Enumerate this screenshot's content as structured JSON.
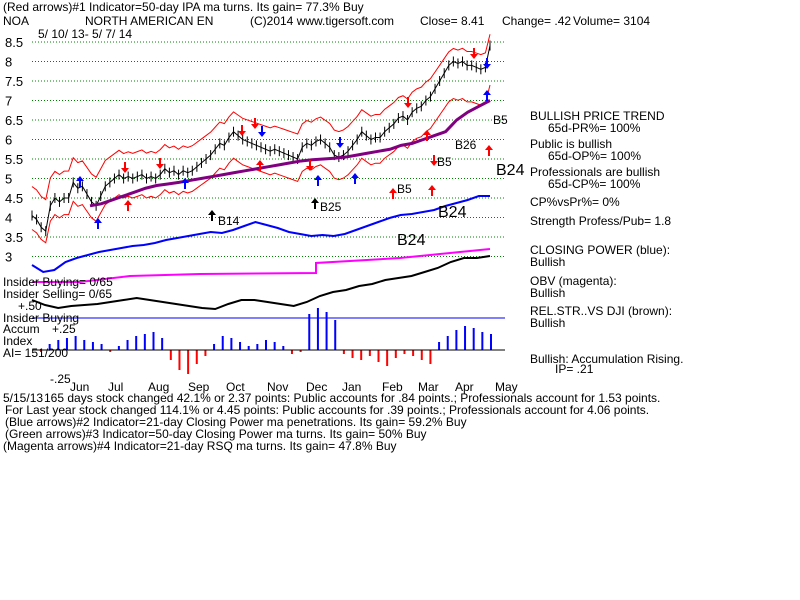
{
  "header": {
    "line1": "(Red arrows)#1 Indicator=50-day IPA ma turns. Its gain= 77.3% Buy",
    "ticker": "NOA",
    "company": "NORTH AMERICAN EN",
    "copyright": "(C)2014 www.tigersoft.com",
    "close": "Close=  8.41",
    "change": "Change= .42",
    "volume": "Volume= 3104",
    "date_range": "5/ 10/ 13- 5/ 7/ 14"
  },
  "signals": [
    "B14",
    "B25",
    "B5",
    "B5",
    "B5",
    "B26",
    "B24",
    "B24",
    "B24"
  ],
  "side_panel": {
    "trend_title": "BULLISH PRICE TREND",
    "pr": "65d-PR%= 100%",
    "public": "Public is bullish",
    "op": "65d-OP%= 100%",
    "pros": "Professionals are bullish",
    "cp": "65d-CP%= 100%",
    "cpvspr": "CP%vsPr%=  0%",
    "strength": "Strength Profess/Pub= 1.8",
    "closing_power": "CLOSING POWER (blue):",
    "closing_power_val": "Bullish",
    "obv": "OBV (magenta):",
    "obv_val": "Bullish",
    "relstr": "REL.STR..VS DJI (brown):",
    "relstr_val": "Bullish",
    "accum": "Bullish: Accumulation Rising.",
    "ip": "IP=  .21"
  },
  "lower_panel": {
    "insider_buying": "Insider Buying= 0/65",
    "insider_selling": "Insider Selling= 0/65",
    "plus50": "+.50",
    "insider_buying2": "Insider Buying",
    "accum_label": "Accum",
    "plus25": "+.25",
    "index_label": "Index",
    "ai": "AI= 151/200",
    "minus25": "-.25"
  },
  "footer": {
    "l1": "165 days stock changed  42.1% or  2.37 points:  Public accounts for  .84 points.;  Professionals account for  1.53 points.",
    "l1_prefix": "5/15/13",
    "l2": "For Last year stock changed  114.1% or  4.45 points:  Public accounts for  .39 points.;  Professionals account for  4.06 points.",
    "l3": "(Blue arrows)#2 Indicator=21-day Closing Power ma penetrations. Its gain= 59.2% Buy",
    "l4": "(Green arrows)#3 Indicator=50-day Closing Power ma turns. Its gain= 50% Buy",
    "l5": "(Magenta arrows)#4 Indicator=21-day RSQ ma turns. Its gain= 47.8% Buy"
  },
  "colors": {
    "price": "#000000",
    "bands": "#ff0000",
    "ma": "#800080",
    "closing_power": "#0000ff",
    "obv": "#ff00ff",
    "accum_pos": "#0000ff",
    "accum_neg": "#ff0000",
    "gridline": "#008000"
  },
  "chart_data": {
    "type": "line",
    "ylim": [
      3,
      8.7
    ],
    "yticks": [
      "8.5",
      "8",
      "7.5",
      "7",
      "6.5",
      "6",
      "5.5",
      "5",
      "4.5",
      "4",
      "3.5",
      "3"
    ],
    "month_labels": [
      "Jun",
      "Jul",
      "Aug",
      "Sep",
      "Oct",
      "Nov",
      "Dec",
      "Jan",
      "Feb",
      "Mar",
      "Apr",
      "May"
    ],
    "series": [
      {
        "values": [
          4.05,
          3.95,
          3.75,
          3.65,
          4.3,
          4.5,
          4.4,
          4.5,
          4.5,
          4.9,
          4.75,
          4.8,
          4.6,
          4.4,
          4.3,
          4.55,
          4.8,
          4.9,
          5.0,
          5.1,
          5.0,
          5.05,
          5.0,
          5.05,
          5.1,
          5.0,
          5.05,
          5.0,
          5.1,
          5.25,
          5.15,
          5.2,
          5.1,
          5.2,
          5.15,
          5.2,
          5.3,
          5.4,
          5.5,
          5.6,
          5.75,
          5.9,
          5.85,
          6.05,
          6.2,
          6.1,
          6.0,
          5.95,
          5.9,
          5.85,
          5.8,
          5.75,
          5.7,
          5.75,
          5.7,
          5.65,
          5.6,
          5.55,
          5.5,
          5.8,
          5.9,
          5.85,
          5.95,
          6.0,
          5.9,
          5.8,
          5.6,
          5.55,
          5.6,
          5.7,
          5.85,
          6.0,
          6.2,
          6.1,
          6.0,
          6.05,
          6.05,
          6.2,
          6.3,
          6.4,
          6.55,
          6.6,
          6.5,
          6.7,
          6.8,
          6.85,
          7.0,
          7.1,
          7.3,
          7.5,
          7.7,
          7.9,
          8.0,
          7.95,
          8.0,
          7.9,
          7.9,
          7.85,
          7.8,
          7.85,
          8.41
        ]
      },
      {
        "values": [
          4.3,
          4.35,
          4.45,
          4.55,
          4.65,
          4.75,
          4.82,
          4.86,
          4.9,
          4.95,
          5.0,
          5.05,
          5.1,
          5.15,
          5.2,
          5.25,
          5.3,
          5.35,
          5.4,
          5.45,
          5.48,
          5.5,
          5.52,
          5.55,
          5.6,
          5.65,
          5.7,
          5.75,
          5.85,
          5.9,
          6.0,
          6.1,
          6.2,
          6.5,
          6.7,
          6.85,
          7.0
        ]
      }
    ]
  }
}
